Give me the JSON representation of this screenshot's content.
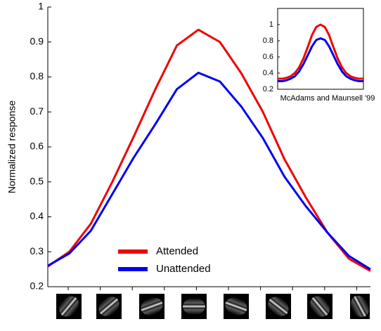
{
  "chart_data": [
    {
      "type": "line",
      "ylabel": "Normalized response",
      "categories": [
        null,
        null,
        null,
        null,
        null,
        null,
        null,
        null,
        null,
        null,
        null,
        null,
        null,
        null,
        null,
        null
      ],
      "series": [
        {
          "name": "Attended",
          "color": "#ee0000",
          "values": [
            0.258,
            0.3,
            0.38,
            0.5,
            0.63,
            0.765,
            0.89,
            0.935,
            0.9,
            0.81,
            0.7,
            0.565,
            0.455,
            0.355,
            0.28,
            0.245
          ]
        },
        {
          "name": "Unattended",
          "color": "#0000ee",
          "values": [
            0.26,
            0.295,
            0.36,
            0.465,
            0.57,
            0.665,
            0.765,
            0.812,
            0.787,
            0.715,
            0.625,
            0.515,
            0.43,
            0.355,
            0.288,
            0.25
          ]
        }
      ],
      "ylim": [
        0.2,
        1
      ],
      "yticks": [
        0.2,
        0.3,
        0.4,
        0.5,
        0.6,
        0.7,
        0.8,
        0.9,
        1
      ],
      "legend": "lower-center"
    },
    {
      "type": "line",
      "caption": "McAdams and Maunsell '99",
      "categories": [
        null,
        null,
        null,
        null,
        null,
        null,
        null,
        null,
        null,
        null,
        null,
        null,
        null,
        null,
        null,
        null,
        null,
        null,
        null,
        null,
        null
      ],
      "series": [
        {
          "color": "#ee0000",
          "values": [
            0.33,
            0.33,
            0.34,
            0.36,
            0.4,
            0.47,
            0.58,
            0.72,
            0.87,
            0.97,
            1.0,
            0.97,
            0.87,
            0.72,
            0.58,
            0.47,
            0.4,
            0.36,
            0.34,
            0.33,
            0.33
          ]
        },
        {
          "color": "#0000ee",
          "values": [
            0.3,
            0.3,
            0.31,
            0.33,
            0.36,
            0.42,
            0.51,
            0.62,
            0.73,
            0.81,
            0.83,
            0.81,
            0.73,
            0.62,
            0.51,
            0.42,
            0.36,
            0.33,
            0.31,
            0.3,
            0.3
          ]
        }
      ],
      "ylim": [
        0.2,
        1.2
      ],
      "yticks": [
        0.2,
        0.4,
        0.6,
        0.8,
        1
      ]
    }
  ]
}
